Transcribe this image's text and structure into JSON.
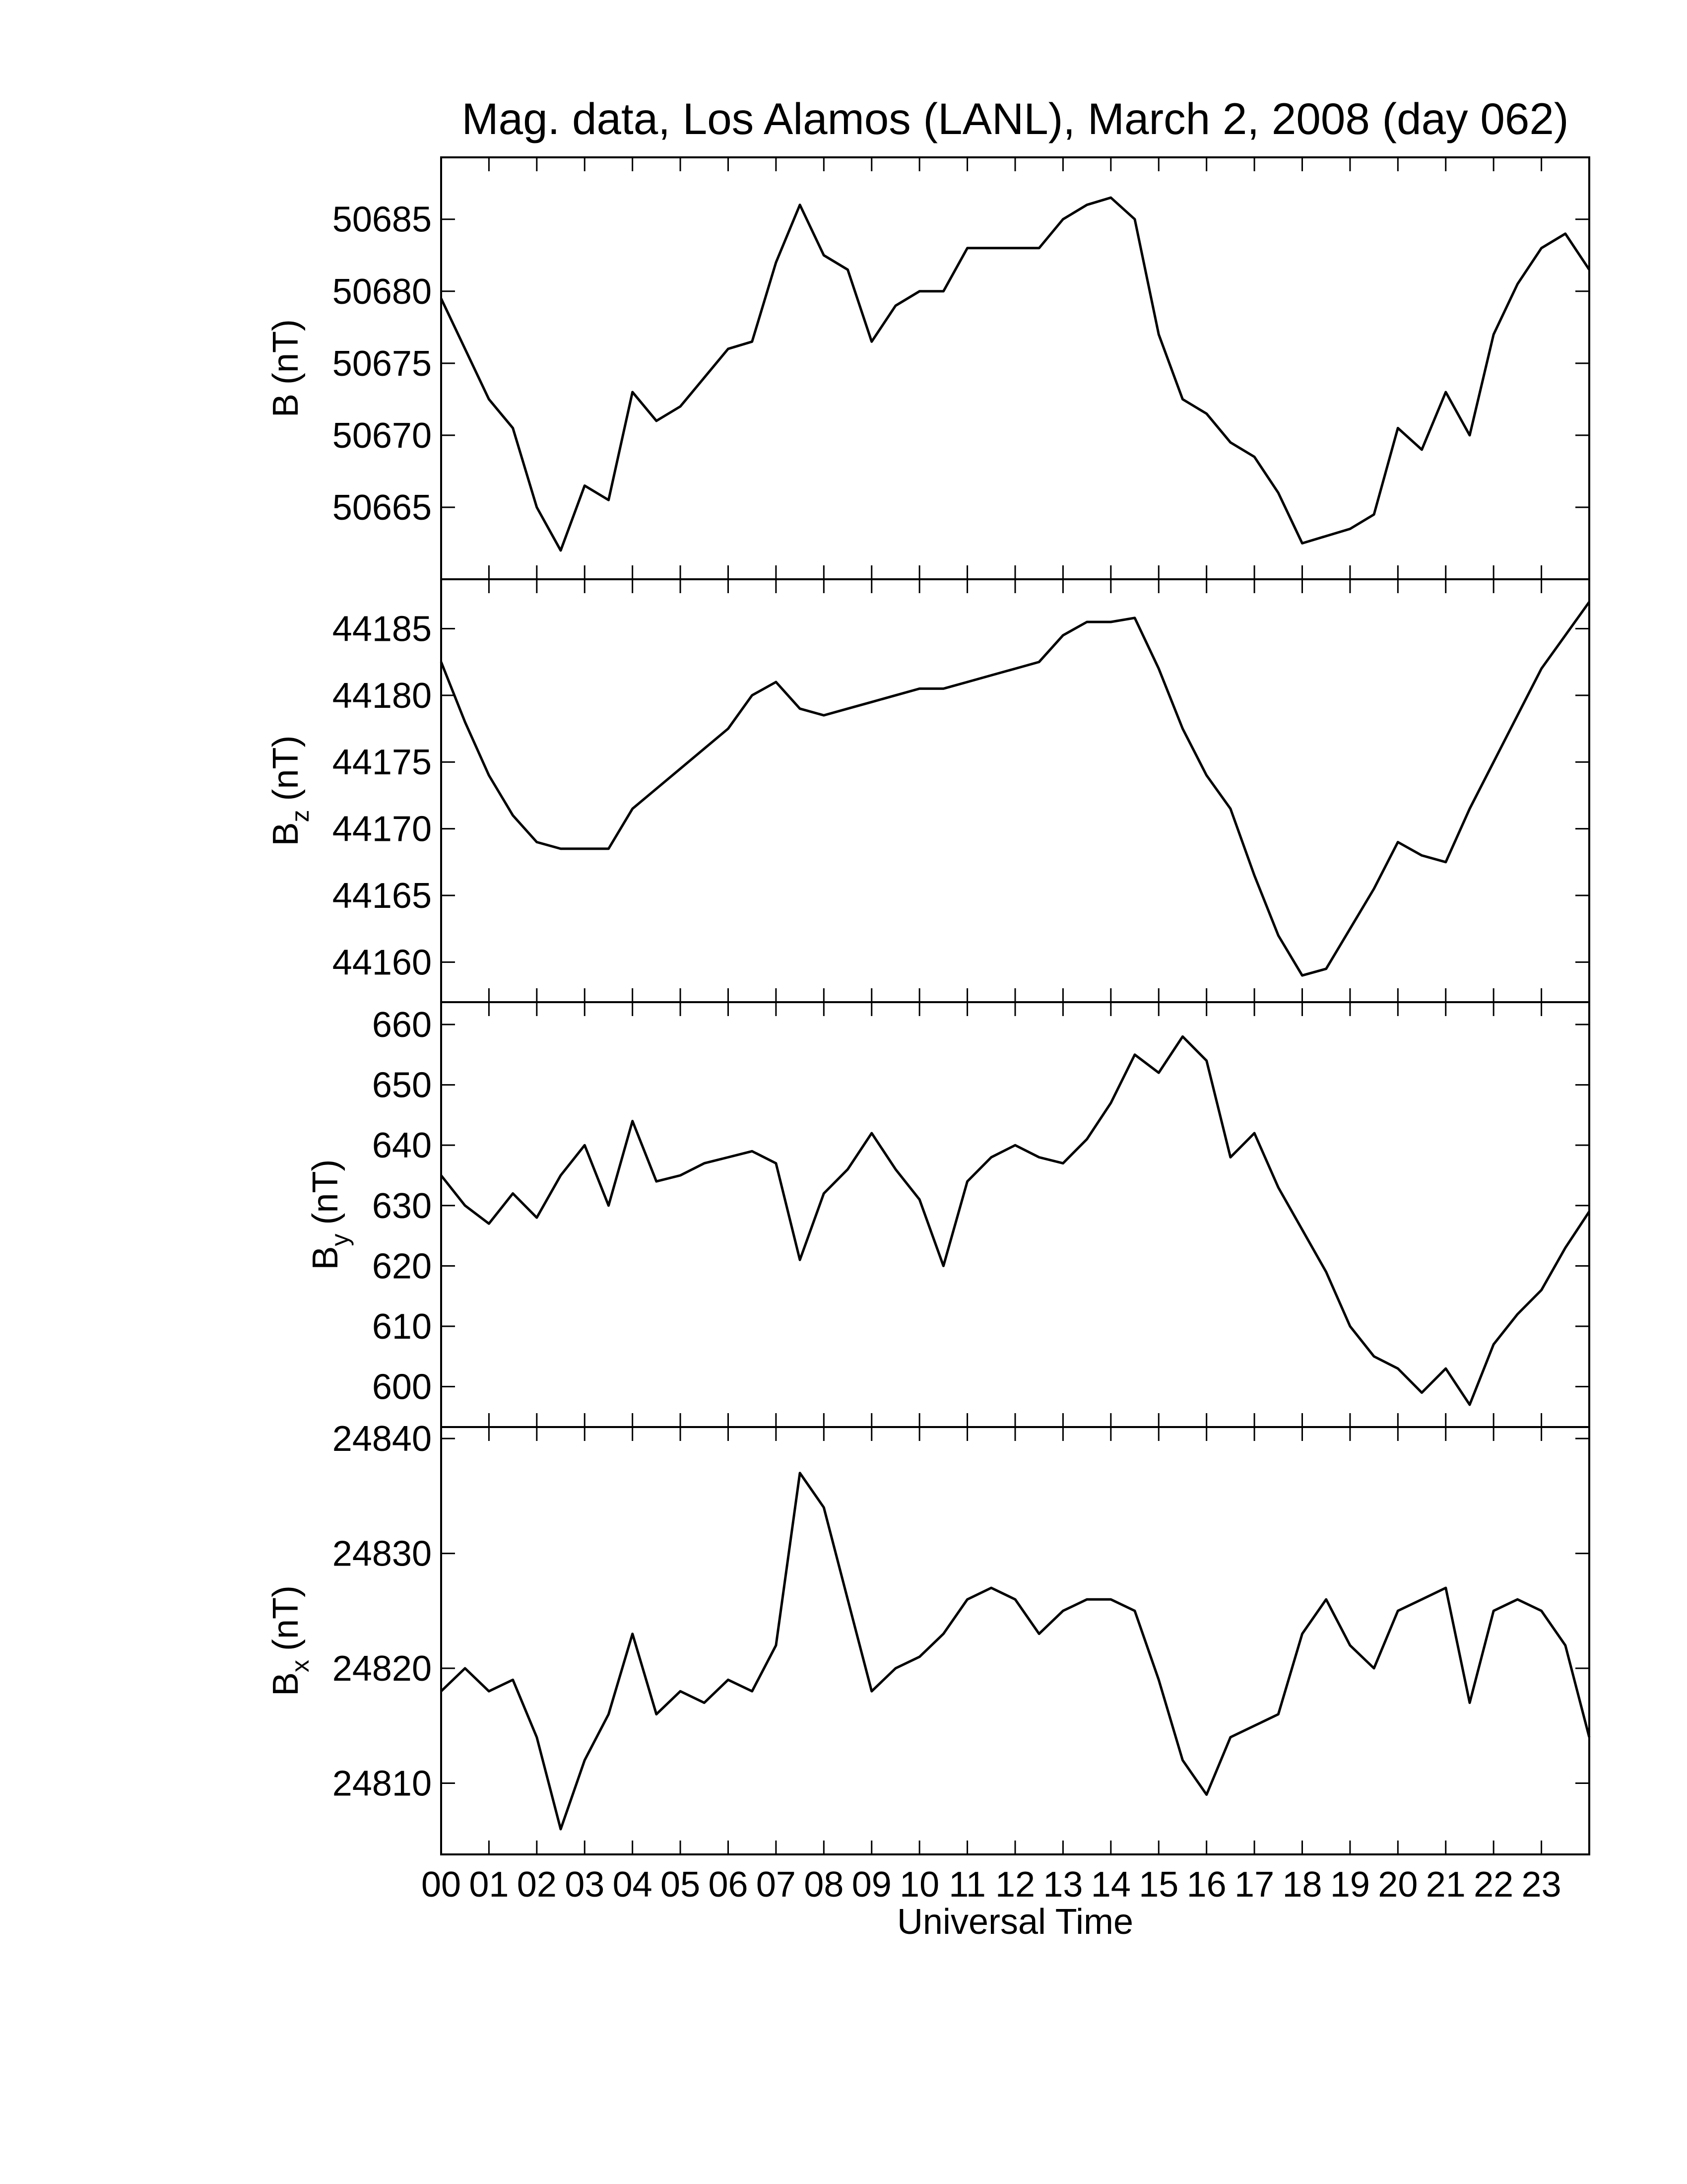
{
  "chart_data": [
    {
      "type": "line",
      "title": "Mag. data, Los Alamos (LANL), March 2, 2008 (day 062)",
      "ylabel": "B",
      "ylabel_units": "(nT)",
      "xlim": [
        0,
        24
      ],
      "ylim": [
        50660,
        50689.3
      ],
      "yticks": [
        50665,
        50670,
        50675,
        50680,
        50685
      ],
      "x": [
        0,
        0.5,
        1,
        1.5,
        2,
        2.5,
        3,
        3.5,
        4,
        4.5,
        5,
        5.5,
        6,
        6.5,
        7,
        7.5,
        8,
        8.5,
        9,
        9.5,
        10,
        10.5,
        11,
        11.5,
        12,
        12.5,
        13,
        13.5,
        14,
        14.5,
        15,
        15.5,
        16,
        16.5,
        17,
        17.5,
        18,
        18.5,
        19,
        19.5,
        20,
        20.5,
        21,
        21.5,
        22,
        22.5,
        23,
        23.5,
        24
      ],
      "series": [
        {
          "color": "#000000",
          "values": [
            50679.5,
            50676,
            50672.5,
            50670.5,
            50665,
            50662,
            50666.5,
            50665.5,
            50673,
            50671,
            50672,
            50674,
            50676,
            50676.5,
            50682,
            50686,
            50682.5,
            50681.5,
            50676.5,
            50679,
            50680,
            50680,
            50683,
            50683,
            50683,
            50683,
            50685,
            50686,
            50686.5,
            50685,
            50677,
            50672.5,
            50671.5,
            50669.5,
            50668.5,
            50666,
            50662.5,
            50663,
            50663.5,
            50664.5,
            50670.5,
            50669,
            50673,
            50670,
            50677,
            50680.5,
            50683,
            50684,
            50681.5
          ]
        }
      ]
    },
    {
      "type": "line",
      "ylabel": "B",
      "ylabel_subscript": "z",
      "ylabel_units": "(nT)",
      "xlim": [
        0,
        24
      ],
      "ylim": [
        44157,
        44188.7
      ],
      "yticks": [
        44160,
        44165,
        44170,
        44175,
        44180,
        44185
      ],
      "x": [
        0,
        0.5,
        1,
        1.5,
        2,
        2.5,
        3,
        3.5,
        4,
        4.5,
        5,
        5.5,
        6,
        6.5,
        7,
        7.5,
        8,
        8.5,
        9,
        9.5,
        10,
        10.5,
        11,
        11.5,
        12,
        12.5,
        13,
        13.5,
        14,
        14.5,
        15,
        15.5,
        16,
        16.5,
        17,
        17.5,
        18,
        18.5,
        19,
        19.5,
        20,
        20.5,
        21,
        21.5,
        22,
        22.5,
        23,
        23.5,
        24
      ],
      "series": [
        {
          "color": "#000000",
          "values": [
            44182.5,
            44178,
            44174,
            44171,
            44169,
            44168.5,
            44168.5,
            44168.5,
            44171.5,
            44173,
            44174.5,
            44176,
            44177.5,
            44180,
            44181,
            44179,
            44178.5,
            44179,
            44179.5,
            44180,
            44180.5,
            44180.5,
            44181,
            44181.5,
            44182,
            44182.5,
            44184.5,
            44185.5,
            44185.5,
            44185.8,
            44182,
            44177.5,
            44174,
            44171.5,
            44166.5,
            44162,
            44159,
            44159.5,
            44162.5,
            44165.5,
            44169,
            44168,
            44167.5,
            44171.5,
            44175,
            44178.5,
            44182,
            44184.5,
            44187
          ]
        }
      ]
    },
    {
      "type": "line",
      "ylabel": "B",
      "ylabel_subscript": "y",
      "ylabel_units": "(nT)",
      "xlim": [
        0,
        24
      ],
      "ylim": [
        593.3,
        663.7
      ],
      "yticks": [
        600,
        610,
        620,
        630,
        640,
        650,
        660
      ],
      "x": [
        0,
        0.5,
        1,
        1.5,
        2,
        2.5,
        3,
        3.5,
        4,
        4.5,
        5,
        5.5,
        6,
        6.5,
        7,
        7.5,
        8,
        8.5,
        9,
        9.5,
        10,
        10.5,
        11,
        11.5,
        12,
        12.5,
        13,
        13.5,
        14,
        14.5,
        15,
        15.5,
        16,
        16.5,
        17,
        17.5,
        18,
        18.5,
        19,
        19.5,
        20,
        20.5,
        21,
        21.5,
        22,
        22.5,
        23,
        23.5,
        24
      ],
      "series": [
        {
          "color": "#000000",
          "values": [
            635,
            630,
            627,
            632,
            628,
            635,
            640,
            630,
            644,
            634,
            635,
            637,
            638,
            639,
            637,
            621,
            632,
            636,
            642,
            636,
            631,
            620,
            634,
            638,
            640,
            638,
            637,
            641,
            647,
            655,
            652,
            658,
            654,
            638,
            642,
            633,
            626,
            619,
            610,
            605,
            603,
            599,
            603,
            597,
            607,
            612,
            616,
            623,
            629
          ]
        }
      ]
    },
    {
      "type": "line",
      "ylabel": "B",
      "ylabel_subscript": "x",
      "ylabel_units": "(nT)",
      "xlabel": "Universal Time",
      "xlim": [
        0,
        24
      ],
      "ylim": [
        24803.8,
        24841
      ],
      "yticks": [
        24810,
        24820,
        24830,
        24840
      ],
      "xticks": [
        {
          "value": 0,
          "label": "00"
        },
        {
          "value": 1,
          "label": "01"
        },
        {
          "value": 2,
          "label": "02"
        },
        {
          "value": 3,
          "label": "03"
        },
        {
          "value": 4,
          "label": "04"
        },
        {
          "value": 5,
          "label": "05"
        },
        {
          "value": 6,
          "label": "06"
        },
        {
          "value": 7,
          "label": "07"
        },
        {
          "value": 8,
          "label": "08"
        },
        {
          "value": 9,
          "label": "09"
        },
        {
          "value": 10,
          "label": "10"
        },
        {
          "value": 11,
          "label": "11"
        },
        {
          "value": 12,
          "label": "12"
        },
        {
          "value": 13,
          "label": "13"
        },
        {
          "value": 14,
          "label": "14"
        },
        {
          "value": 15,
          "label": "15"
        },
        {
          "value": 16,
          "label": "16"
        },
        {
          "value": 17,
          "label": "17"
        },
        {
          "value": 18,
          "label": "18"
        },
        {
          "value": 19,
          "label": "19"
        },
        {
          "value": 20,
          "label": "20"
        },
        {
          "value": 21,
          "label": "21"
        },
        {
          "value": 22,
          "label": "22"
        },
        {
          "value": 23,
          "label": "23"
        }
      ],
      "x": [
        0,
        0.5,
        1,
        1.5,
        2,
        2.5,
        3,
        3.5,
        4,
        4.5,
        5,
        5.5,
        6,
        6.5,
        7,
        7.5,
        8,
        8.5,
        9,
        9.5,
        10,
        10.5,
        11,
        11.5,
        12,
        12.5,
        13,
        13.5,
        14,
        14.5,
        15,
        15.5,
        16,
        16.5,
        17,
        17.5,
        18,
        18.5,
        19,
        19.5,
        20,
        20.5,
        21,
        21.5,
        22,
        22.5,
        23,
        23.5,
        24
      ],
      "series": [
        {
          "color": "#000000",
          "values": [
            24818,
            24820,
            24818,
            24819,
            24814,
            24806,
            24812,
            24816,
            24823,
            24816,
            24818,
            24817,
            24819,
            24818,
            24822,
            24837,
            24834,
            24826,
            24818,
            24820,
            24821,
            24823,
            24826,
            24827,
            24826,
            24823,
            24825,
            24826,
            24826,
            24825,
            24819,
            24812,
            24809,
            24814,
            24815,
            24816,
            24823,
            24826,
            24822,
            24820,
            24825,
            24826,
            24827,
            24817,
            24825,
            24826,
            24825,
            24822,
            24814
          ]
        }
      ]
    }
  ]
}
